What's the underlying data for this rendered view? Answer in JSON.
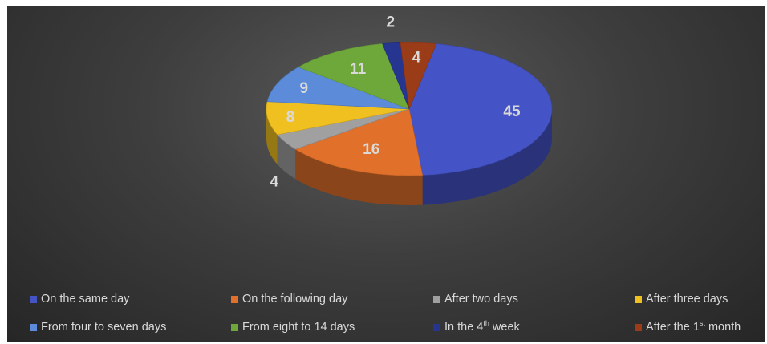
{
  "chart_data": {
    "type": "pie",
    "style": "3d",
    "categories": [
      "On the same day",
      "On the following day",
      "After two days",
      "After three days",
      "From four to seven days",
      "From eight to 14 days",
      "In the 4th week",
      "After the 1st month"
    ],
    "values": [
      45,
      16,
      4,
      8,
      9,
      11,
      2,
      4
    ],
    "colors": [
      "#4453c5",
      "#e0702a",
      "#a0a0a0",
      "#f0c020",
      "#5b8bd9",
      "#6ea83b",
      "#26358f",
      "#9a3c18"
    ],
    "legend_position": "bottom"
  },
  "legend": [
    {
      "text": "On the same day",
      "sup": "",
      "tail": ""
    },
    {
      "text": "On the following day",
      "sup": "",
      "tail": ""
    },
    {
      "text": "After two days",
      "sup": "",
      "tail": ""
    },
    {
      "text": "After three days",
      "sup": "",
      "tail": ""
    },
    {
      "text": "From four to seven days",
      "sup": "",
      "tail": ""
    },
    {
      "text": "From eight to 14 days",
      "sup": "",
      "tail": ""
    },
    {
      "text": "In the 4",
      "sup": "th",
      "tail": " week"
    },
    {
      "text": "After the 1",
      "sup": "st",
      "tail": " month"
    }
  ]
}
